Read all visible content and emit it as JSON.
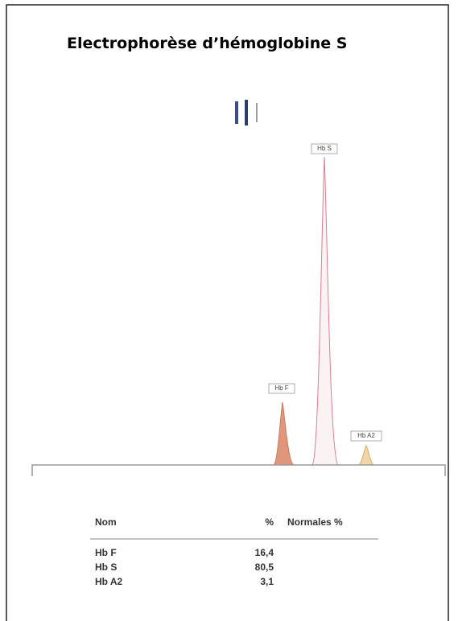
{
  "title": "Electrophorèse d’hémoglobine S",
  "peaks": [
    {
      "label": "Hb F"
    },
    {
      "label": "Hb S"
    },
    {
      "label": "Hb A2"
    }
  ],
  "table": {
    "header": [
      "Nom",
      "%",
      "Normales %"
    ],
    "rows": [
      [
        "Hb F",
        "16,4"
      ],
      [
        "Hb S",
        "80,5"
      ],
      [
        "Hb A2",
        "3,1"
      ]
    ]
  }
}
